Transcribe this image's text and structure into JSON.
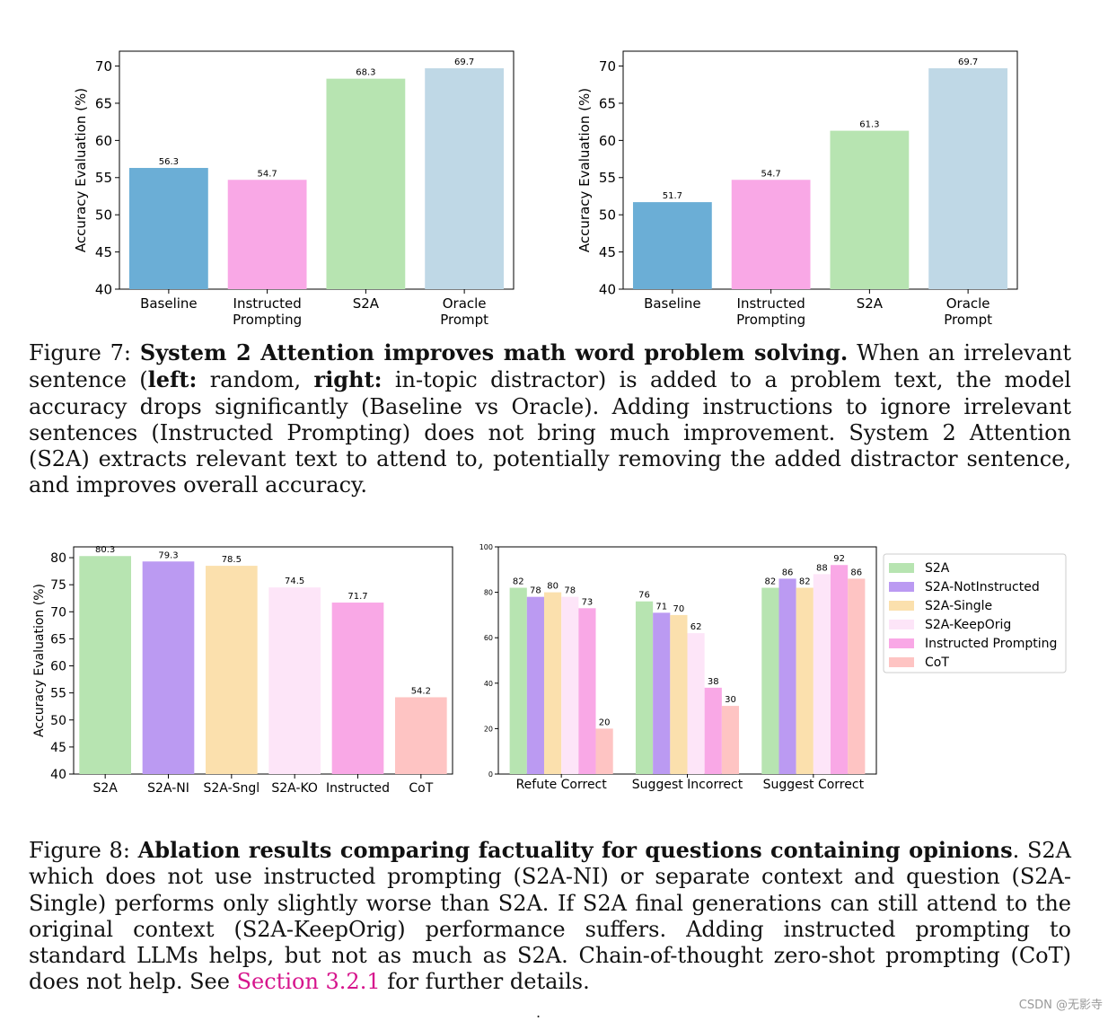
{
  "chart_data": [
    {
      "type": "bar",
      "ylabel": "Accuracy Evaluation (%)",
      "ylim": [
        40,
        72
      ],
      "yticks": [
        40,
        45,
        50,
        55,
        60,
        65,
        70
      ],
      "categories": [
        "Baseline",
        "Instructed\nPrompting",
        "S2A",
        "Oracle\nPrompt"
      ],
      "values": [
        56.3,
        54.7,
        68.3,
        69.7
      ],
      "value_labels": [
        "56.3",
        "54.7",
        "68.3",
        "69.7"
      ],
      "colors": [
        "#6baed6",
        "#f9a8e6",
        "#b7e4b1",
        "#bfd8e6"
      ]
    },
    {
      "type": "bar",
      "ylabel": "Accuracy Evaluation (%)",
      "ylim": [
        40,
        72
      ],
      "yticks": [
        40,
        45,
        50,
        55,
        60,
        65,
        70
      ],
      "categories": [
        "Baseline",
        "Instructed\nPrompting",
        "S2A",
        "Oracle\nPrompt"
      ],
      "values": [
        51.7,
        54.7,
        61.3,
        69.7
      ],
      "value_labels": [
        "51.7",
        "54.7",
        "61.3",
        "69.7"
      ],
      "colors": [
        "#6baed6",
        "#f9a8e6",
        "#b7e4b1",
        "#bfd8e6"
      ]
    },
    {
      "type": "bar",
      "ylabel": "Accuracy Evaluation (%)",
      "ylim": [
        40,
        82
      ],
      "yticks": [
        40,
        45,
        50,
        55,
        60,
        65,
        70,
        75,
        80
      ],
      "categories": [
        "S2A",
        "S2A-NI",
        "S2A-Sngl",
        "S2A-KO",
        "Instructed",
        "CoT"
      ],
      "values": [
        80.3,
        79.3,
        78.5,
        74.5,
        71.7,
        54.2
      ],
      "value_labels": [
        "80.3",
        "79.3",
        "78.5",
        "74.5",
        "71.7",
        "54.2"
      ],
      "colors": [
        "#b7e4b1",
        "#bb9af2",
        "#fbe0ad",
        "#fde5f8",
        "#f9a8e6",
        "#fec4c3"
      ]
    },
    {
      "type": "bar",
      "ylim": [
        0,
        100
      ],
      "yticks": [
        0,
        20,
        40,
        60,
        80,
        100
      ],
      "categories": [
        "Refute Correct",
        "Suggest Incorrect",
        "Suggest Correct"
      ],
      "series": [
        {
          "name": "S2A",
          "values": [
            82,
            76,
            82
          ],
          "labels": [
            "82",
            "76",
            "82"
          ],
          "color": "#b7e4b1"
        },
        {
          "name": "S2A-NotInstructed",
          "values": [
            78,
            71,
            86
          ],
          "labels": [
            "78",
            "71",
            "86"
          ],
          "color": "#bb9af2"
        },
        {
          "name": "S2A-Single",
          "values": [
            80,
            70,
            82
          ],
          "labels": [
            "80",
            "70",
            "82"
          ],
          "color": "#fbe0ad"
        },
        {
          "name": "S2A-KeepOrig",
          "values": [
            78,
            62,
            88
          ],
          "labels": [
            "78",
            "62",
            "88"
          ],
          "color": "#fde5f8"
        },
        {
          "name": "Instructed Prompting",
          "values": [
            73,
            38,
            92
          ],
          "labels": [
            "73",
            "38",
            "92"
          ],
          "color": "#f9a8e6"
        },
        {
          "name": "CoT",
          "values": [
            20,
            30,
            86
          ],
          "labels": [
            "20",
            "30",
            "86"
          ],
          "color": "#fec4c3"
        }
      ],
      "legend_position": "right"
    }
  ],
  "fig7": {
    "label": "Figure 7:",
    "bold": "System 2 Attention improves math word problem solving.",
    "t1": "When an irrelevant sentence (",
    "left_b": "left:",
    "t2": "random,",
    "right_b": "right:",
    "t3": "in-topic distractor) is added to a problem text, the model accuracy drops significantly (Baseline vs Oracle). Adding instructions to ignore irrelevant sentences (Instructed Prompting) does not bring much improvement. System 2 Attention (S2A) extracts relevant text to attend to, potentially removing the added distractor sentence, and improves overall accuracy."
  },
  "fig8": {
    "label": "Figure 8:",
    "bold": "Ablation results comparing factuality for questions containing opinions",
    "t1": ". S2A which does not use instructed prompting (S2A-NI) or separate context and question (S2A-Single) performs only slightly worse than S2A. If S2A final generations can still attend to the original context (S2A-KeepOrig) performance suffers. Adding instructed prompting to standard LLMs helps, but not as much as S2A. Chain-of-thought zero-shot prompting (CoT) does not help. See",
    "link": "Section 3.2.1",
    "t2": "for further details."
  },
  "watermark": "CSDN @无影寺",
  "footer_dot": "."
}
